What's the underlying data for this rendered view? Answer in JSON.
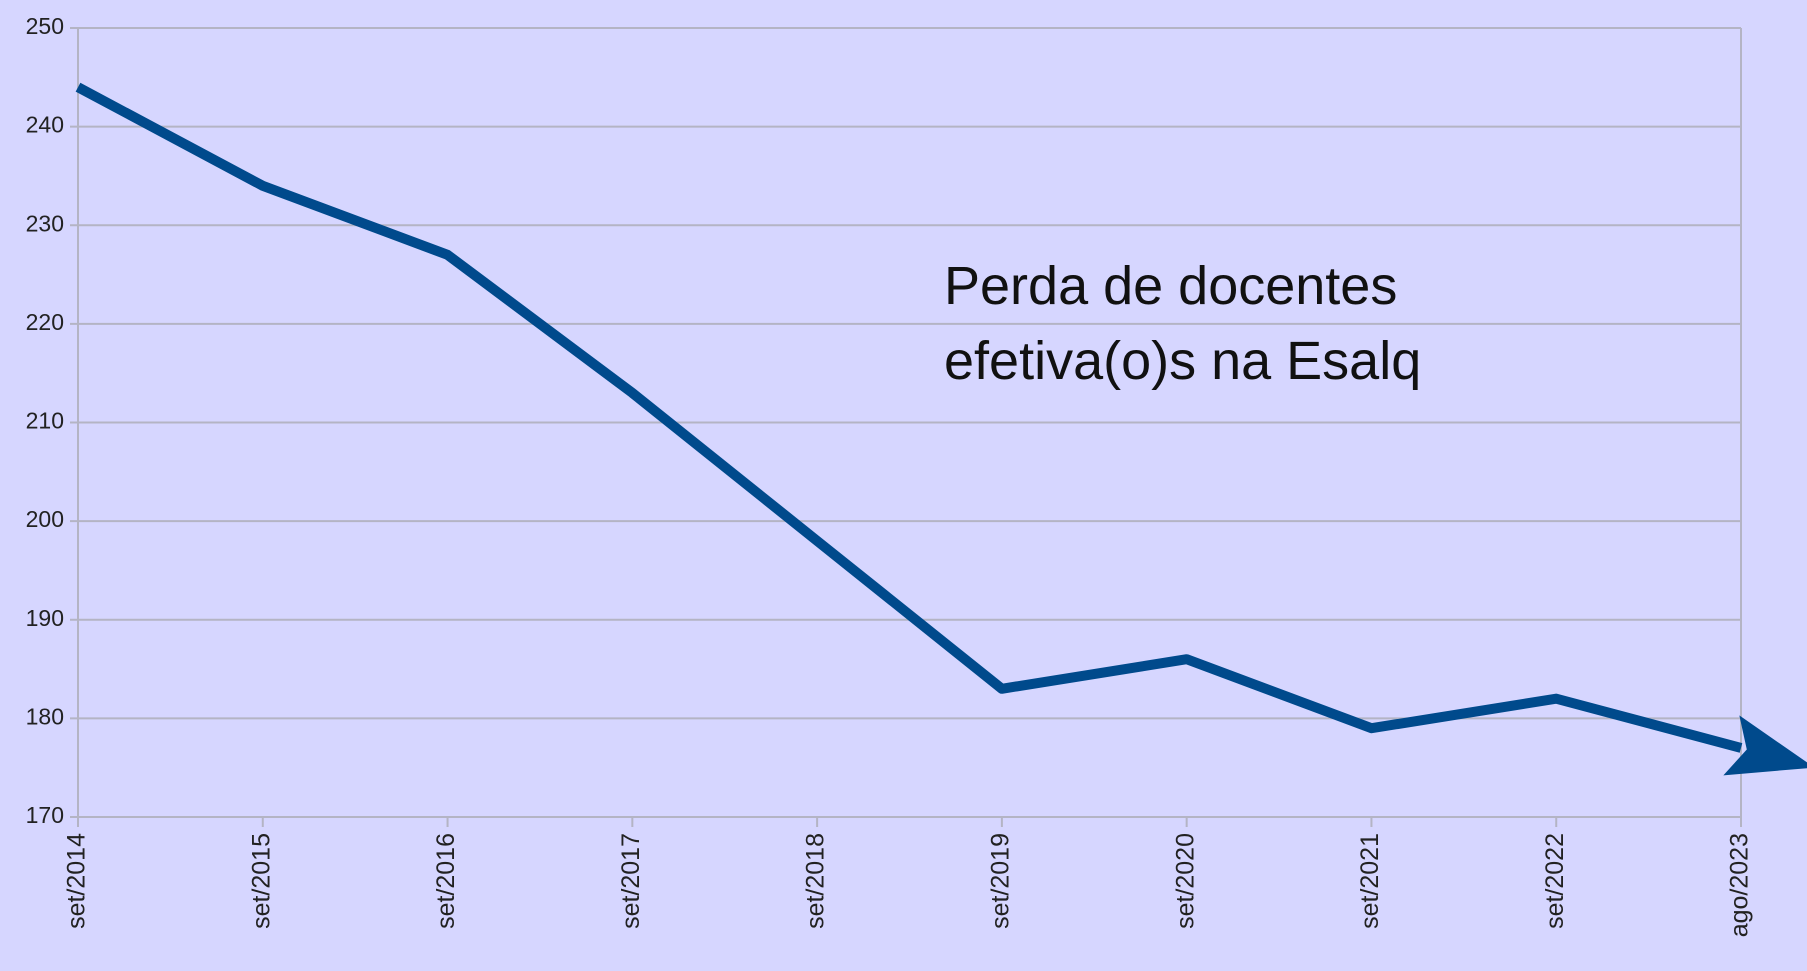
{
  "chart_data": {
    "type": "line",
    "annotation": [
      "Perda de docentes",
      "efetiva(o)s na Esalq"
    ],
    "categories": [
      "set/2014",
      "set/2015",
      "set/2016",
      "set/2017",
      "set/2018",
      "set/2019",
      "set/2020",
      "set/2021",
      "set/2022",
      "ago/2023"
    ],
    "values": [
      244,
      234,
      227,
      213,
      198,
      183,
      186,
      179,
      182,
      177
    ],
    "color": "#004a8c",
    "ylim": [
      170,
      250
    ],
    "yticks": [
      170,
      180,
      190,
      200,
      210,
      220,
      230,
      240,
      250
    ],
    "grid": true
  }
}
